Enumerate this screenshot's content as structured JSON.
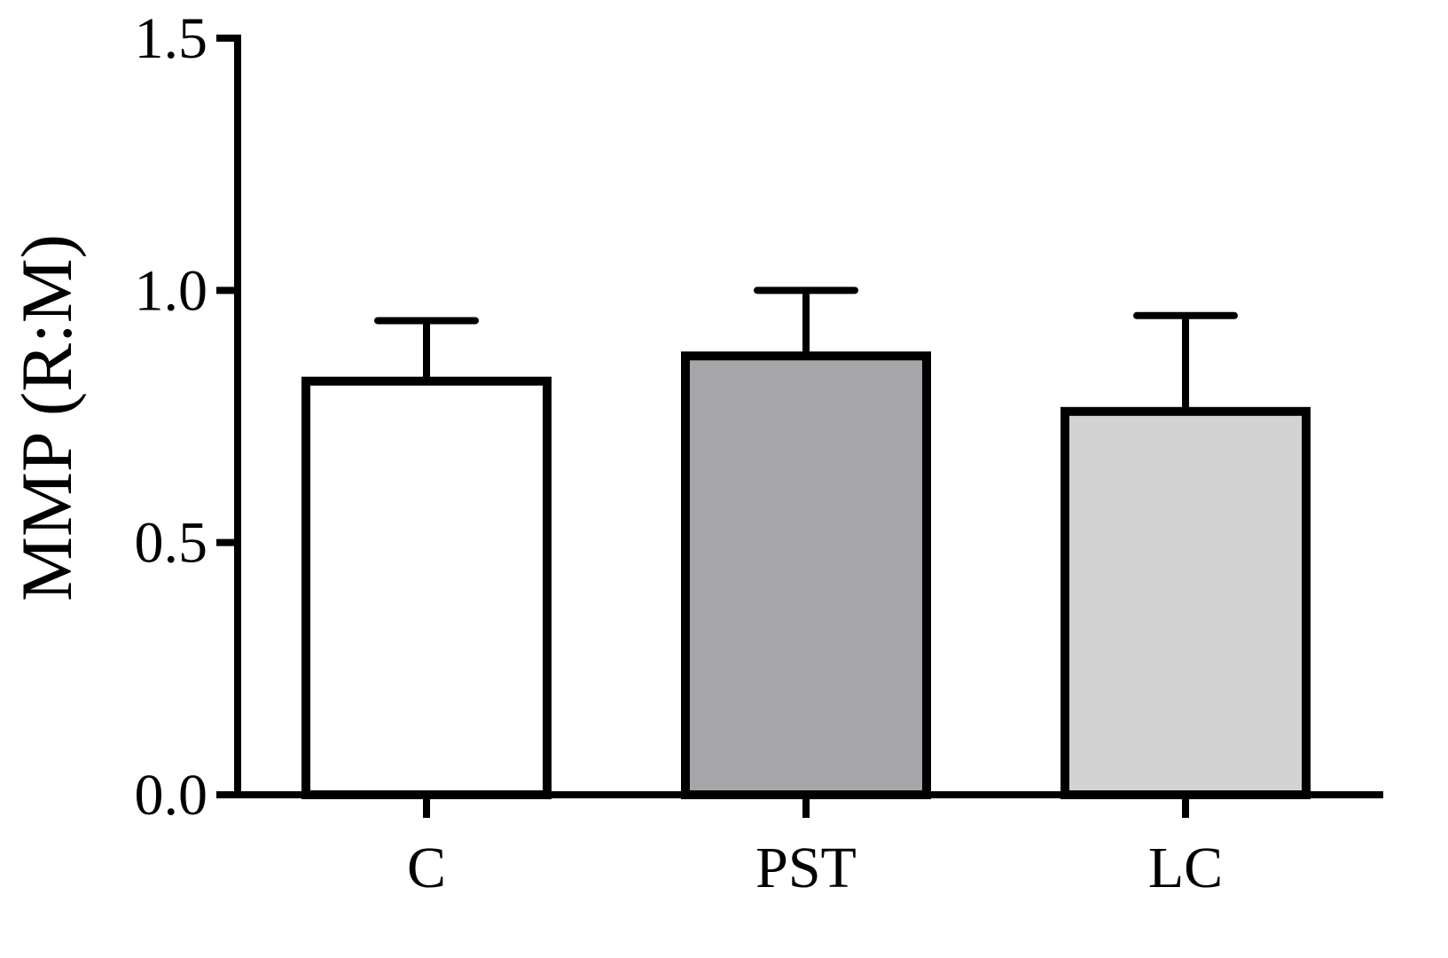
{
  "chart_data": {
    "type": "bar",
    "title": "",
    "xlabel": "",
    "ylabel": "MMP (R:M)",
    "ylim": [
      0,
      1.5
    ],
    "yticks": [
      0.0,
      0.5,
      1.0,
      1.5
    ],
    "ytick_labels": [
      "0.0",
      "0.5",
      "1.0",
      "1.5"
    ],
    "categories": [
      "C",
      "PST",
      "LC"
    ],
    "values": [
      0.82,
      0.87,
      0.76
    ],
    "error_upper": [
      0.94,
      1.0,
      0.95
    ],
    "bar_colors": [
      "#ffffff",
      "#a6a5a9",
      "#d3d3d3"
    ],
    "edge_color": "#000000",
    "grid": false,
    "legend": "none"
  }
}
